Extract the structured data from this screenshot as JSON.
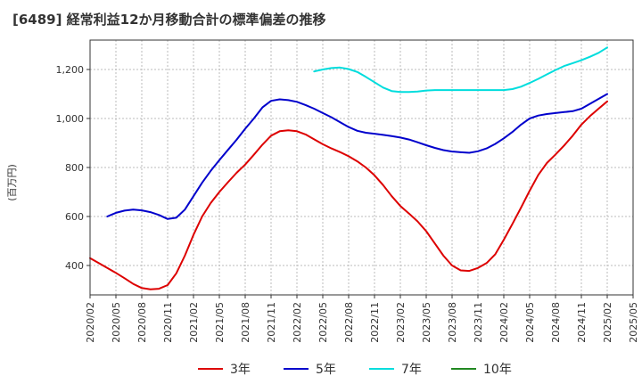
{
  "chart_data": {
    "type": "line",
    "title": "[6489]  経常利益12か月移動合計の標準偏差の推移",
    "ylabel": "(百万円)",
    "xlabel": "",
    "ylim": [
      280,
      1320
    ],
    "y_ticks": [
      400,
      600,
      800,
      1000,
      1200
    ],
    "y_tick_labels": [
      "400",
      "600",
      "800",
      "1,000",
      "1,200"
    ],
    "x_ticks": [
      "2020/02",
      "2020/05",
      "2020/08",
      "2020/11",
      "2021/02",
      "2021/05",
      "2021/08",
      "2021/11",
      "2022/02",
      "2022/05",
      "2022/08",
      "2022/11",
      "2023/02",
      "2023/05",
      "2023/08",
      "2023/11",
      "2024/02",
      "2024/05",
      "2024/08",
      "2024/11",
      "2025/02",
      "2025/05"
    ],
    "grid": true,
    "legend_position": "bottom",
    "series": [
      {
        "name": "3年",
        "color": "#dd0000",
        "x": [
          "2020/02",
          "2020/03",
          "2020/04",
          "2020/05",
          "2020/06",
          "2020/07",
          "2020/08",
          "2020/09",
          "2020/10",
          "2020/11",
          "2020/12",
          "2021/01",
          "2021/02",
          "2021/03",
          "2021/04",
          "2021/05",
          "2021/06",
          "2021/07",
          "2021/08",
          "2021/09",
          "2021/10",
          "2021/11",
          "2021/12",
          "2022/01",
          "2022/02",
          "2022/03",
          "2022/04",
          "2022/05",
          "2022/06",
          "2022/07",
          "2022/08",
          "2022/09",
          "2022/10",
          "2022/11",
          "2022/12",
          "2023/01",
          "2023/02",
          "2023/03",
          "2023/04",
          "2023/05",
          "2023/06",
          "2023/07",
          "2023/08",
          "2023/09",
          "2023/10",
          "2023/11",
          "2023/12",
          "2024/01",
          "2024/02",
          "2024/03",
          "2024/04",
          "2024/05",
          "2024/06",
          "2024/07",
          "2024/08",
          "2024/09",
          "2024/10",
          "2024/11",
          "2024/12",
          "2025/01",
          "2025/02"
        ],
        "values": [
          430,
          410,
          390,
          370,
          348,
          325,
          308,
          303,
          305,
          320,
          368,
          440,
          525,
          600,
          655,
          700,
          740,
          778,
          812,
          852,
          893,
          930,
          948,
          952,
          948,
          935,
          915,
          895,
          878,
          863,
          846,
          825,
          800,
          768,
          728,
          683,
          643,
          612,
          580,
          540,
          490,
          440,
          400,
          380,
          378,
          390,
          410,
          445,
          505,
          570,
          636,
          705,
          770,
          818,
          853,
          890,
          930,
          975,
          1010,
          1040,
          1070
        ]
      },
      {
        "name": "5年",
        "color": "#0000cc",
        "x": [
          "2020/04",
          "2020/05",
          "2020/06",
          "2020/07",
          "2020/08",
          "2020/09",
          "2020/10",
          "2020/11",
          "2020/12",
          "2021/01",
          "2021/02",
          "2021/03",
          "2021/04",
          "2021/05",
          "2021/06",
          "2021/07",
          "2021/08",
          "2021/09",
          "2021/10",
          "2021/11",
          "2021/12",
          "2022/01",
          "2022/02",
          "2022/03",
          "2022/04",
          "2022/05",
          "2022/06",
          "2022/07",
          "2022/08",
          "2022/09",
          "2022/10",
          "2022/11",
          "2022/12",
          "2023/01",
          "2023/02",
          "2023/03",
          "2023/04",
          "2023/05",
          "2023/06",
          "2023/07",
          "2023/08",
          "2023/09",
          "2023/10",
          "2023/11",
          "2023/12",
          "2024/01",
          "2024/02",
          "2024/03",
          "2024/04",
          "2024/05",
          "2024/06",
          "2024/07",
          "2024/08",
          "2024/09",
          "2024/10",
          "2024/11",
          "2024/12",
          "2025/01",
          "2025/02"
        ],
        "values": [
          600,
          615,
          624,
          628,
          625,
          618,
          606,
          590,
          595,
          628,
          683,
          738,
          786,
          830,
          872,
          913,
          958,
          1000,
          1045,
          1072,
          1078,
          1075,
          1068,
          1055,
          1040,
          1022,
          1005,
          985,
          965,
          950,
          942,
          938,
          933,
          928,
          922,
          914,
          903,
          891,
          880,
          871,
          865,
          862,
          860,
          866,
          878,
          896,
          919,
          945,
          975,
          1000,
          1012,
          1018,
          1022,
          1026,
          1030,
          1040,
          1060,
          1080,
          1100
        ]
      },
      {
        "name": "7年",
        "color": "#00dddd",
        "x": [
          "2022/04",
          "2022/05",
          "2022/06",
          "2022/07",
          "2022/08",
          "2022/09",
          "2022/10",
          "2022/11",
          "2022/12",
          "2023/01",
          "2023/02",
          "2023/03",
          "2023/04",
          "2023/05",
          "2023/06",
          "2023/07",
          "2023/08",
          "2023/09",
          "2023/10",
          "2023/11",
          "2023/12",
          "2024/01",
          "2024/02",
          "2024/03",
          "2024/04",
          "2024/05",
          "2024/06",
          "2024/07",
          "2024/08",
          "2024/09",
          "2024/10",
          "2024/11",
          "2024/12",
          "2025/01",
          "2025/02"
        ],
        "values": [
          1192,
          1200,
          1206,
          1208,
          1202,
          1190,
          1170,
          1148,
          1126,
          1112,
          1108,
          1108,
          1110,
          1114,
          1116,
          1116,
          1116,
          1116,
          1116,
          1116,
          1116,
          1116,
          1116,
          1120,
          1130,
          1145,
          1162,
          1180,
          1198,
          1214,
          1226,
          1238,
          1252,
          1268,
          1290
        ]
      },
      {
        "name": "10年",
        "color": "#228822",
        "x": [],
        "values": []
      }
    ]
  }
}
